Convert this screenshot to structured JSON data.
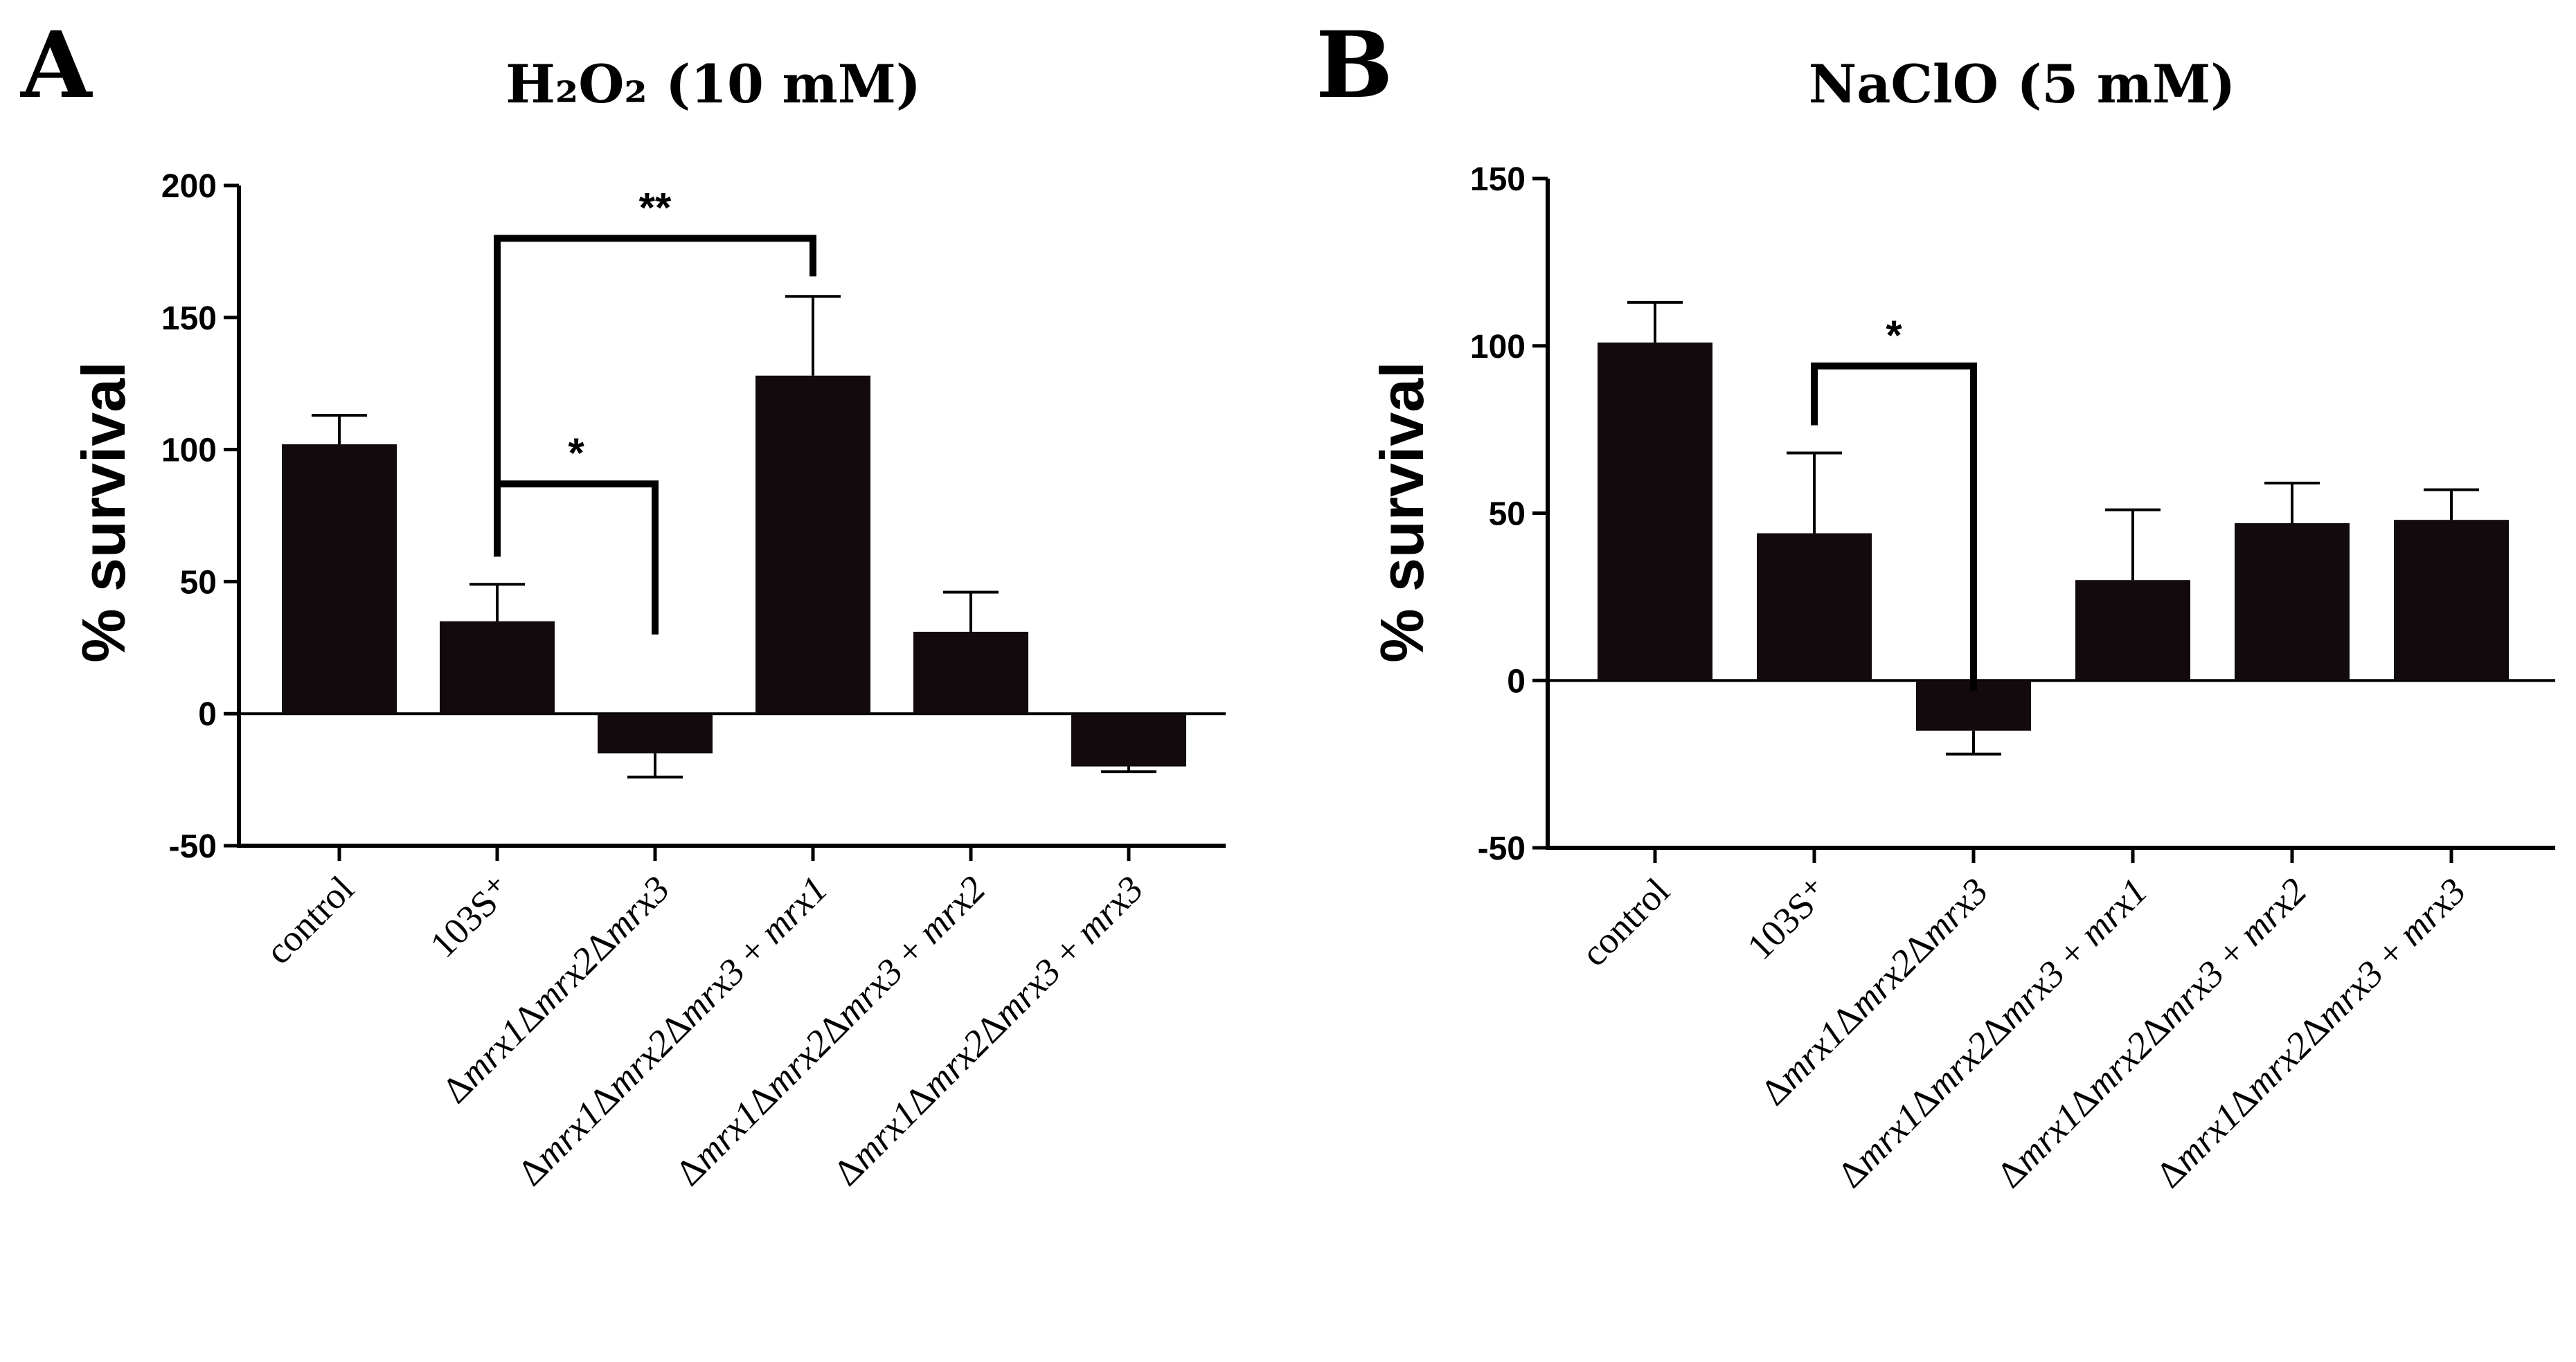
{
  "panels": [
    {
      "letter": "A",
      "title": "H₂O₂ (10 mM)",
      "chart_data": {
        "type": "bar",
        "title": "H₂O₂ (10 mM)",
        "ylabel": "% survival",
        "xlabel": "",
        "ylim": [
          -50,
          200
        ],
        "yticks": [
          -50,
          0,
          50,
          100,
          150,
          200
        ],
        "categories": [
          "control",
          "103S⁺",
          "Δmrx1Δmrx2Δmrx3",
          "Δmrx1Δmrx2Δmrx3 + mrx1",
          "Δmrx1Δmrx2Δmrx3 + mrx2",
          "Δmrx1Δmrx2Δmrx3 + mrx3"
        ],
        "values": [
          102,
          35,
          -15,
          128,
          31,
          -20
        ],
        "errors": [
          11,
          14,
          9,
          30,
          15,
          2
        ],
        "significance": [
          {
            "from": 1,
            "to": 3,
            "label": "**",
            "y": 180
          },
          {
            "from": 1,
            "to": 2,
            "label": "*",
            "y": 87
          }
        ]
      }
    },
    {
      "letter": "B",
      "title": "NaClO (5 mM)",
      "chart_data": {
        "type": "bar",
        "title": "NaClO (5 mM)",
        "ylabel": "% survival",
        "xlabel": "",
        "ylim": [
          -50,
          150
        ],
        "yticks": [
          -50,
          0,
          50,
          100,
          150
        ],
        "categories": [
          "control",
          "103S⁺",
          "Δmrx1Δmrx2Δmrx3",
          "Δmrx1Δmrx2Δmrx3 + mrx1",
          "Δmrx1Δmrx2Δmrx3 + mrx2",
          "Δmrx1Δmrx2Δmrx3 + mrx3"
        ],
        "values": [
          101,
          44,
          -15,
          30,
          47,
          48
        ],
        "errors": [
          12,
          24,
          7,
          21,
          12,
          9
        ],
        "significance": [
          {
            "from": 1,
            "to": 2,
            "label": "*",
            "y": 94
          }
        ]
      }
    }
  ]
}
